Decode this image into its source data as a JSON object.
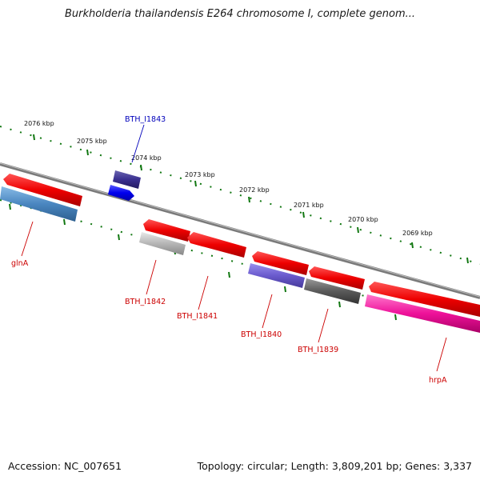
{
  "title": "Burkholderia thailandensis E264 chromosome I, complete genom...",
  "footer": {
    "accession": "Accession: NC_007651",
    "topology": "Topology: circular; Length: 3,809,201 bp; Genes: 3,337"
  },
  "ticks": [
    "2076 kbp",
    "2075 kbp",
    "2074 kbp",
    "2073 kbp",
    "2072 kbp",
    "2071 kbp",
    "2070 kbp",
    "2069 kbp"
  ],
  "gene_labels": [
    {
      "text": "BTH_I1843",
      "color": "#0000bb"
    },
    {
      "text": "glnA",
      "color": "#cc0000"
    },
    {
      "text": "BTH_I1842",
      "color": "#cc0000"
    },
    {
      "text": "BTH_I1841",
      "color": "#cc0000"
    },
    {
      "text": "BTH_I1840",
      "color": "#cc0000"
    },
    {
      "text": "BTH_I1839",
      "color": "#cc0000"
    },
    {
      "text": "hrpA",
      "color": "#cc0000"
    }
  ],
  "colors": {
    "backbone": "#808080",
    "tick_mark": "#117711",
    "cds_forward": "#ee1111",
    "cds_reverse_blue": "#3377bb",
    "cds_purple": "#6655cc",
    "cds_darkgray": "#555555",
    "cds_lightgray": "#aaaaaa",
    "cds_pink": "#ee1199",
    "cds_navy": "#332a88",
    "cds_blue": "#0000ee"
  }
}
